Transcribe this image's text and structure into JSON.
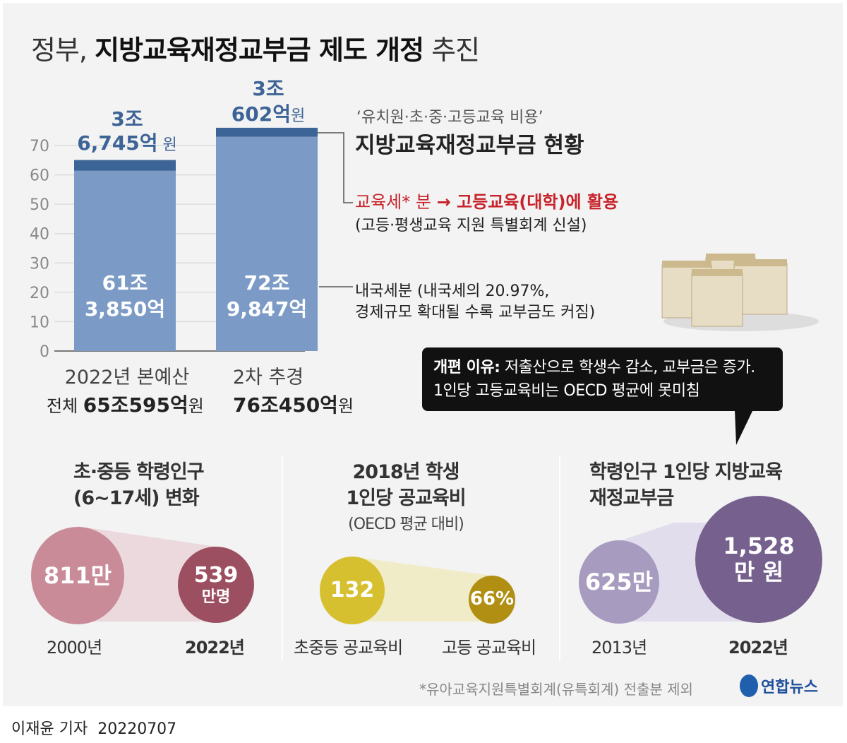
{
  "title": {
    "prefix": "정부, ",
    "main": "지방교육재정교부금 제도 개정",
    "suffix": " 추진"
  },
  "chart_data": {
    "type": "bar",
    "stacked": true,
    "categories": [
      "2022년 본예산",
      "2차 추경"
    ],
    "series": [
      {
        "name": "내국세분",
        "values": [
          61.385,
          72.9847
        ],
        "color": "#7b9bc6"
      },
      {
        "name": "교육세* 분",
        "values": [
          3.6745,
          3.0602
        ],
        "color": "#3d6496"
      }
    ],
    "ylim": [
      0,
      75
    ],
    "yticks": [
      0,
      10,
      20,
      30,
      40,
      50,
      60,
      70
    ],
    "grid": true,
    "bar_top_labels": [
      {
        "l1": "3조",
        "l2": "6,745억",
        "unit": " 원"
      },
      {
        "l1": "3조",
        "l2": "602억",
        "unit": "원"
      }
    ],
    "bar_inner_labels": [
      {
        "l1": "61조",
        "l2": "3,850억"
      },
      {
        "l1": "72조",
        "l2": "9,847억"
      }
    ],
    "totals": [
      {
        "prefix": "전체 ",
        "value": "65조595억",
        "unit": "원"
      },
      {
        "prefix": "",
        "value": "76조450억",
        "unit": "원"
      }
    ]
  },
  "legend": {
    "subtitle": "‘유치원·초·중·고등교육 비용’",
    "heading": "지방교육재정교부금 현황",
    "edu_tax": "교육세* 분",
    "edu_tax_use": "→ 고등교육(대학)에 활용",
    "edu_tax_note": "(고등·평생교육 지원 특별회계 신설)",
    "internal_tax_1": "내국세분 (내국세의 20.97%,",
    "internal_tax_2": "경제규모 확대될 수록 교부금도 커짐)"
  },
  "bubble": {
    "label": "개편 이유:",
    "line1": " 저출산으로 학생수 감소, 교부금은 증가.",
    "line2": "1인당 고등교육비는 OECD 평균에 못미침"
  },
  "panels": [
    {
      "title1": "초·중등 학령인구",
      "title2": "(6~17세) 변화",
      "a_value": "811만",
      "b_value": "539",
      "b_unit": "만명",
      "a_label": "2000년",
      "b_label": "2022년",
      "colors": [
        "#c98b98",
        "#9c4f60"
      ]
    },
    {
      "title1": "2018년 학생",
      "title2": "1인당 공교육비",
      "note": "(OECD 평균 대비)",
      "a_value": "132",
      "b_value": "66%",
      "a_label": "초중등 공교육비",
      "b_label": "고등 공교육비",
      "colors": [
        "#d7c02f",
        "#b08f12"
      ]
    },
    {
      "title1": "학령인구 1인당 지방교육",
      "title2": "재정교부금",
      "a_value": "625만",
      "b_value": "1,528",
      "b_unit": "만 원",
      "a_label": "2013년",
      "b_label": "2022년",
      "colors": [
        "#a79cc0",
        "#76618e"
      ]
    }
  ],
  "footnote": "*유아교육지원특별회계(유특회계) 전출분 제외",
  "logo": "연합뉴스",
  "byline": {
    "author": "이재윤 기자",
    "date": "20220707"
  }
}
